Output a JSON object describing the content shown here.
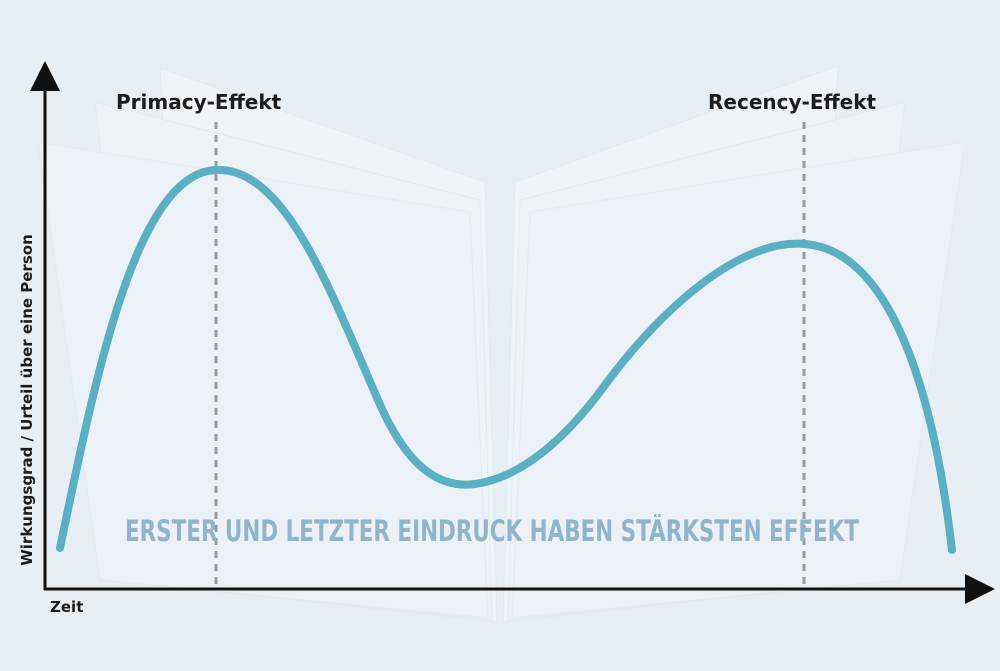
{
  "diagram": {
    "y_axis_label": "Wirkungsgrad / Urteil über eine Person",
    "x_axis_label": "Zeit",
    "peak_labels": {
      "primacy": "Primacy-Effekt",
      "recency": "Recency-Effekt"
    },
    "caption": "ERSTER UND LETZTER EINDRUCK HABEN STÄRKSTEN EFFEKT"
  },
  "colors": {
    "background": "#e8eff4",
    "curve": "#5aafc3",
    "caption": "#8fb4cc",
    "axis": "#111111",
    "marker_line": "#9a9a9a",
    "book_pages": "#f3f7fa"
  }
}
